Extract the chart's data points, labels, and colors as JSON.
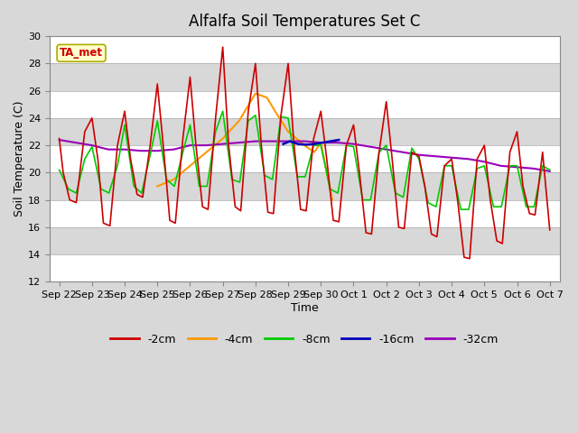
{
  "title": "Alfalfa Soil Temperatures Set C",
  "xlabel": "Time",
  "ylabel": "Soil Temperature (C)",
  "ylim": [
    12,
    30
  ],
  "yticks": [
    12,
    14,
    16,
    18,
    20,
    22,
    24,
    26,
    28,
    30
  ],
  "bg_color": "#d8d8d8",
  "plot_bg_color": "#d8d8d8",
  "line_colors": {
    "-2cm": "#cc0000",
    "-4cm": "#ff9900",
    "-8cm": "#00cc00",
    "-16cm": "#0000bb",
    "-32cm": "#9900bb"
  },
  "TA_met_label": "TA_met",
  "TA_met_color": "#cc0000",
  "TA_met_bg": "#ffffcc",
  "xtick_labels": [
    "Sep 22",
    "Sep 23",
    "Sep 24",
    "Sep 25",
    "Sep 26",
    "Sep 27",
    "Sep 28",
    "Sep 29",
    "Sep 30",
    "Oct 1",
    "Oct 2",
    "Oct 3",
    "Oct 4",
    "Oct 5",
    "Oct 6",
    "Oct 7"
  ],
  "kp_2cm_x": [
    0,
    0.12,
    0.32,
    0.52,
    0.78,
    1.0,
    1.18,
    1.35,
    1.55,
    1.78,
    2.0,
    2.18,
    2.38,
    2.55,
    2.78,
    3.0,
    3.18,
    3.38,
    3.55,
    3.78,
    4.0,
    4.18,
    4.38,
    4.55,
    4.78,
    5.0,
    5.18,
    5.38,
    5.55,
    5.78,
    6.0,
    6.18,
    6.38,
    6.55,
    6.78,
    7.0,
    7.18,
    7.38,
    7.55,
    7.78,
    8.0,
    8.18,
    8.38,
    8.55,
    8.78,
    9.0,
    9.18,
    9.38,
    9.55,
    9.78,
    10.0,
    10.18,
    10.38,
    10.55,
    10.78,
    11.0,
    11.18,
    11.38,
    11.55,
    11.78,
    12.0,
    12.18,
    12.38,
    12.55,
    12.78,
    13.0,
    13.18,
    13.38,
    13.55,
    13.78,
    14.0,
    14.18,
    14.38,
    14.55,
    14.78,
    15.0
  ],
  "kp_2cm_y": [
    22.5,
    20.0,
    18.0,
    17.8,
    23.0,
    24.0,
    21.0,
    16.3,
    16.1,
    22.0,
    24.5,
    21.0,
    18.4,
    18.2,
    22.0,
    26.5,
    22.0,
    16.5,
    16.3,
    22.5,
    27.0,
    22.0,
    17.5,
    17.3,
    24.0,
    29.2,
    22.0,
    17.5,
    17.2,
    24.5,
    28.0,
    22.0,
    17.1,
    17.0,
    24.2,
    28.0,
    22.0,
    17.3,
    17.2,
    22.5,
    24.5,
    21.0,
    16.5,
    16.4,
    22.0,
    23.5,
    20.0,
    15.6,
    15.5,
    21.5,
    25.2,
    21.0,
    16.0,
    15.9,
    21.5,
    21.2,
    19.0,
    15.5,
    15.3,
    20.5,
    21.0,
    18.0,
    13.8,
    13.7,
    21.0,
    22.0,
    18.0,
    15.0,
    14.8,
    21.5,
    23.0,
    19.0,
    17.0,
    16.9,
    21.5,
    15.8
  ],
  "kp_4cm_x": [
    3.0,
    3.5,
    4.0,
    4.5,
    5.0,
    5.5,
    6.0,
    6.35,
    6.6,
    7.0,
    7.5,
    7.8,
    8.0,
    8.35
  ],
  "kp_4cm_y": [
    19.0,
    19.5,
    20.5,
    21.5,
    22.5,
    23.8,
    25.8,
    25.5,
    24.5,
    23.0,
    22.0,
    21.5,
    22.2,
    18.0
  ],
  "kp_8cm_x": [
    0,
    0.28,
    0.52,
    0.78,
    1.0,
    1.28,
    1.52,
    1.78,
    2.0,
    2.28,
    2.52,
    2.78,
    3.0,
    3.28,
    3.52,
    3.78,
    4.0,
    4.28,
    4.52,
    4.78,
    5.0,
    5.28,
    5.52,
    5.78,
    6.0,
    6.28,
    6.52,
    6.78,
    7.0,
    7.28,
    7.52,
    7.78,
    8.0,
    8.28,
    8.52,
    8.78,
    9.0,
    9.28,
    9.52,
    9.78,
    10.0,
    10.28,
    10.52,
    10.78,
    11.0,
    11.28,
    11.52,
    11.78,
    12.0,
    12.28,
    12.52,
    12.78,
    13.0,
    13.28,
    13.52,
    13.78,
    14.0,
    14.28,
    14.52,
    14.78,
    15.0
  ],
  "kp_8cm_y": [
    20.2,
    18.8,
    18.5,
    21.0,
    21.9,
    18.8,
    18.5,
    20.5,
    23.5,
    19.0,
    18.5,
    21.3,
    23.8,
    19.5,
    19.0,
    21.5,
    23.5,
    19.0,
    19.0,
    23.0,
    24.5,
    19.5,
    19.3,
    23.8,
    24.2,
    19.8,
    19.5,
    24.1,
    24.0,
    19.7,
    19.7,
    22.0,
    22.0,
    18.8,
    18.5,
    22.0,
    21.9,
    18.0,
    18.0,
    21.5,
    22.0,
    18.5,
    18.2,
    21.8,
    21.0,
    17.8,
    17.5,
    20.5,
    20.5,
    17.3,
    17.3,
    20.3,
    20.5,
    17.5,
    17.5,
    20.5,
    20.5,
    17.5,
    17.5,
    20.5,
    20.2
  ],
  "kp_16cm_x": [
    6.85,
    7.05,
    7.3,
    7.55,
    7.8,
    8.05,
    8.3,
    8.55
  ],
  "kp_16cm_y": [
    22.1,
    22.3,
    22.1,
    22.05,
    22.1,
    22.2,
    22.3,
    22.4
  ],
  "kp_32cm_x": [
    0,
    0.5,
    1.0,
    1.5,
    2.0,
    2.5,
    3.0,
    3.5,
    4.0,
    4.5,
    5.0,
    5.5,
    6.0,
    6.5,
    7.0,
    7.5,
    8.0,
    8.5,
    9.0,
    9.5,
    10.0,
    10.5,
    11.0,
    11.5,
    12.0,
    12.5,
    13.0,
    13.5,
    14.0,
    14.5,
    15.0
  ],
  "kp_32cm_y": [
    22.4,
    22.2,
    22.0,
    21.7,
    21.7,
    21.6,
    21.6,
    21.7,
    22.0,
    22.0,
    22.1,
    22.2,
    22.3,
    22.3,
    22.3,
    22.3,
    22.2,
    22.2,
    22.1,
    21.9,
    21.7,
    21.5,
    21.3,
    21.2,
    21.1,
    21.0,
    20.8,
    20.5,
    20.4,
    20.3,
    20.1
  ]
}
